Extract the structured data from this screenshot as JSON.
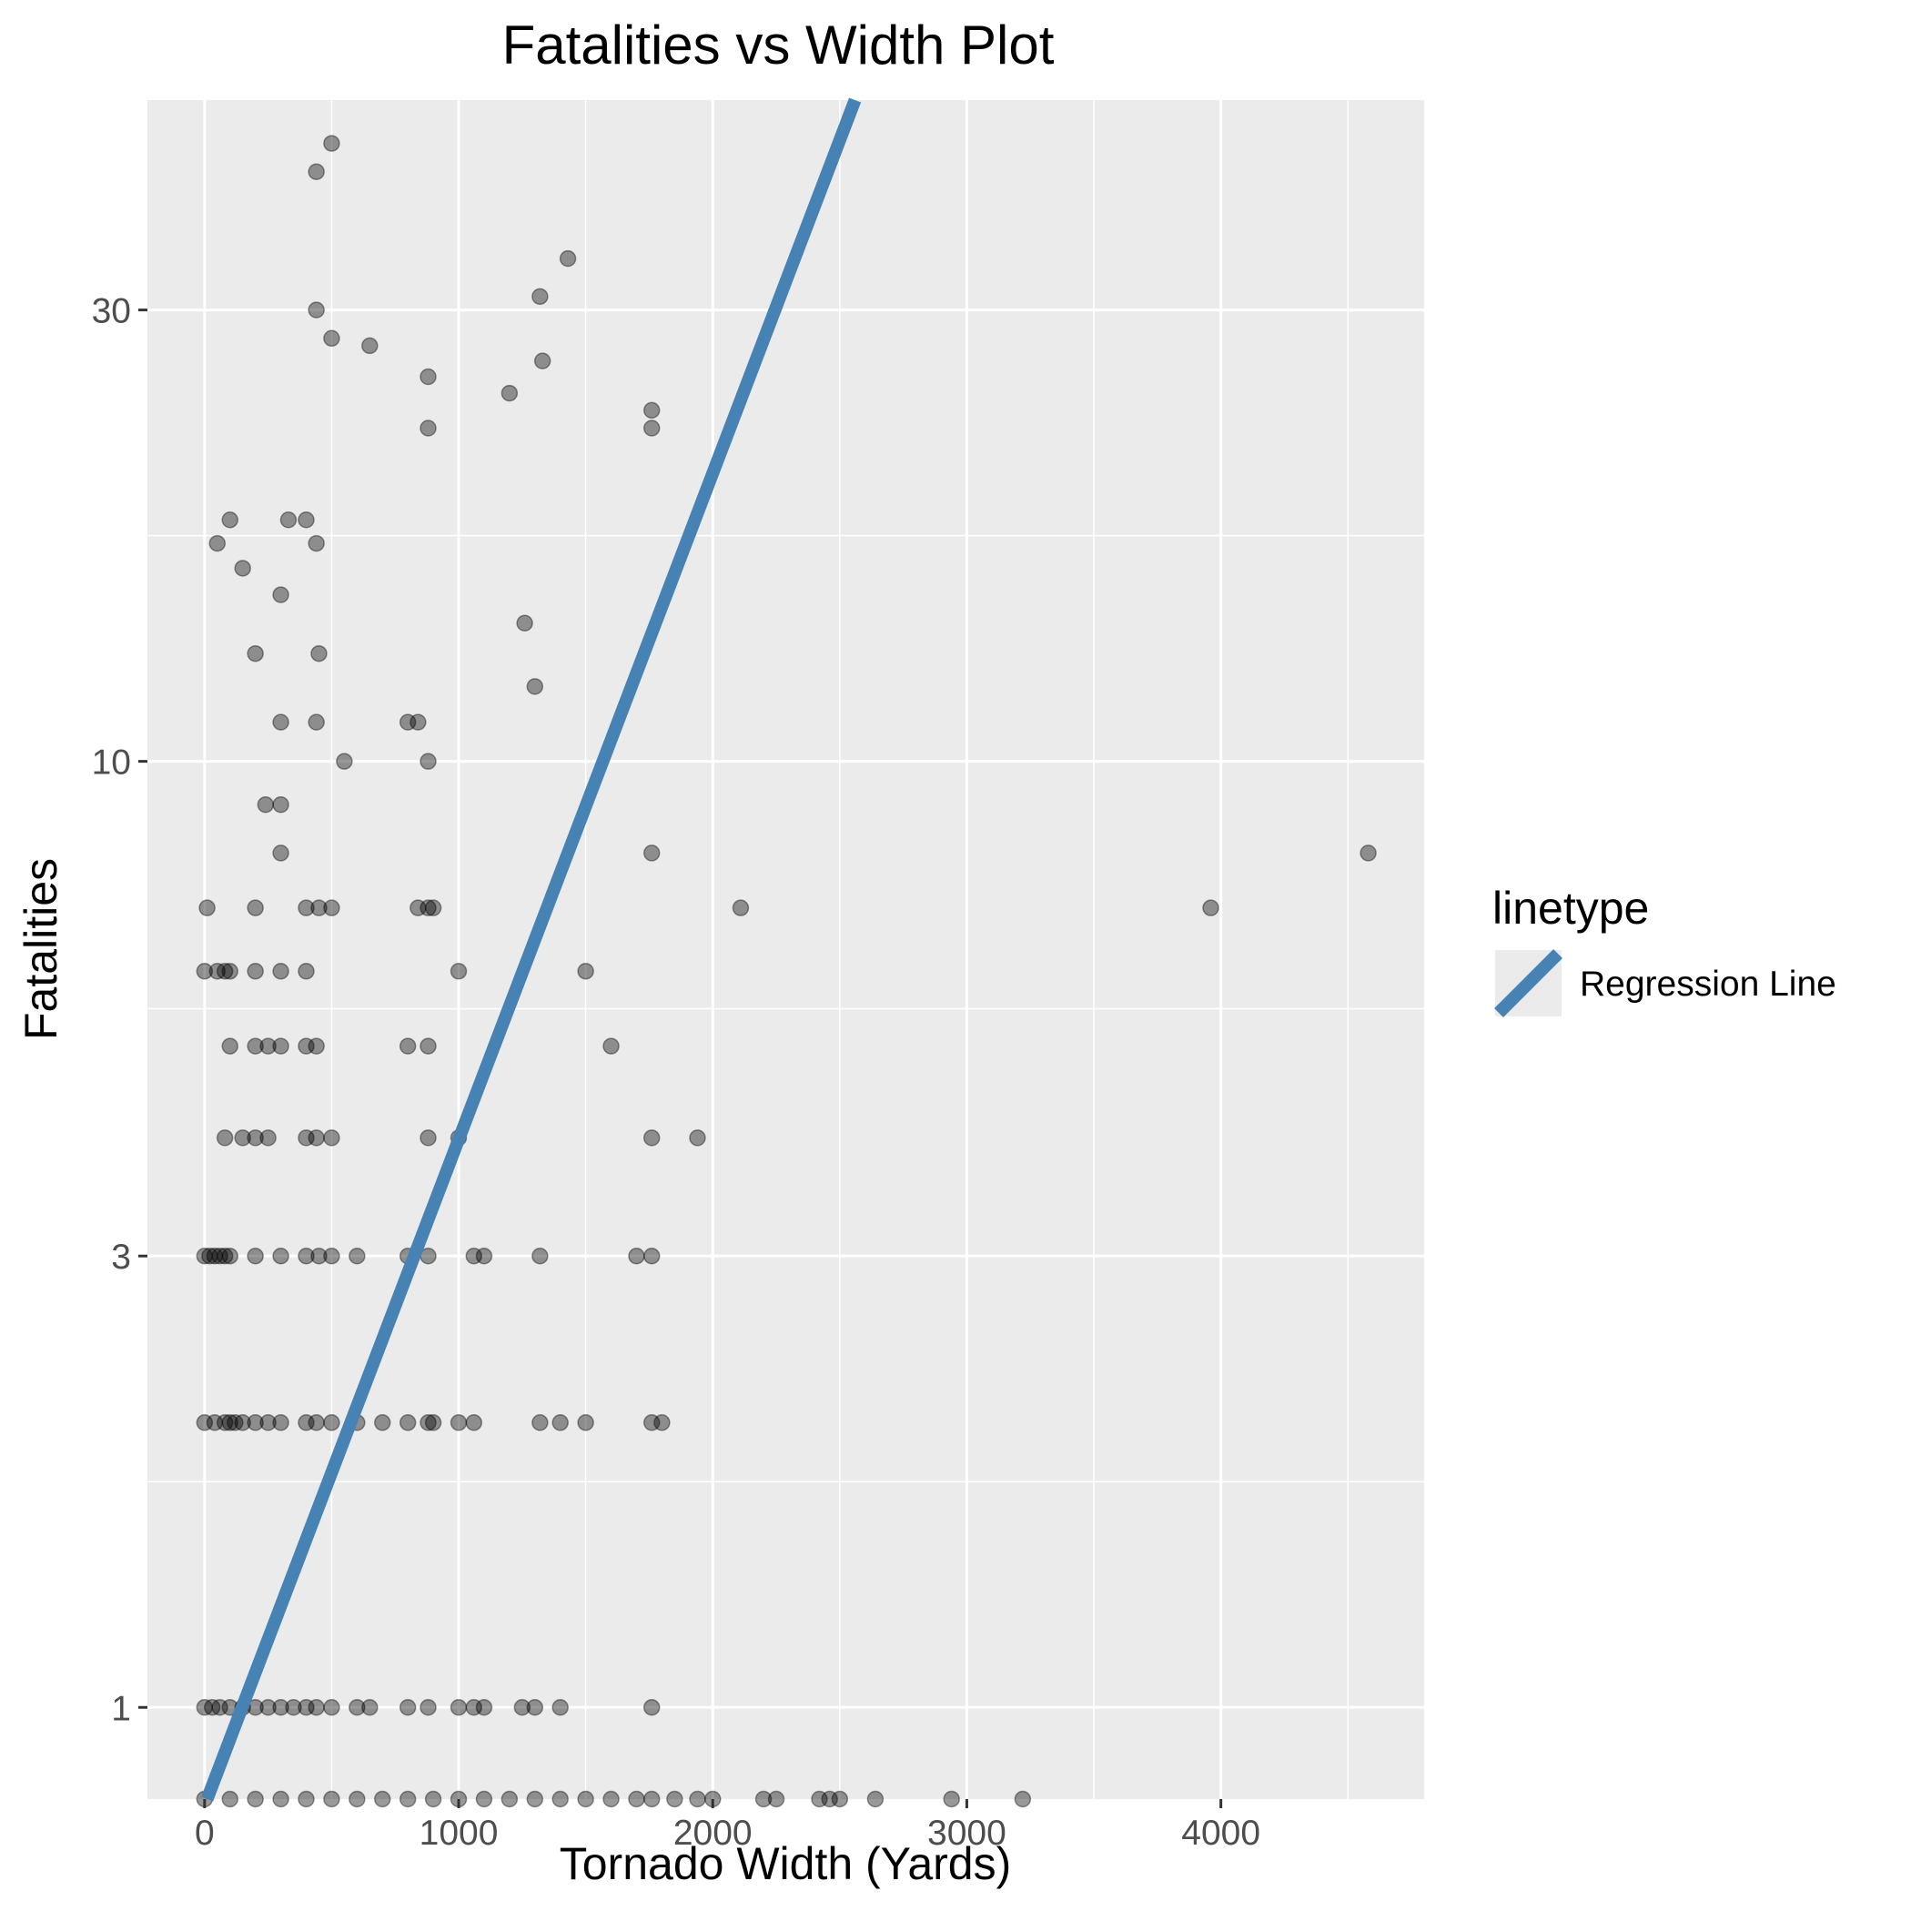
{
  "chart_data": {
    "type": "scatter",
    "title": "Fatalities vs Width Plot",
    "xlabel": "Tornado Width (Yards)",
    "ylabel": "Fatalities",
    "x_scale": "linear",
    "y_scale": "log",
    "xlim": [
      -225,
      4800
    ],
    "ylim": [
      0.8,
      50
    ],
    "x_ticks": [
      0,
      1000,
      2000,
      3000,
      4000
    ],
    "x_tick_labels": [
      "0",
      "1000",
      "2000",
      "3000",
      "4000"
    ],
    "y_ticks": [
      1,
      3,
      10,
      30
    ],
    "y_tick_labels": [
      "1",
      "3",
      "10",
      "30"
    ],
    "grid": true,
    "legend": {
      "title": "linetype",
      "position": "right",
      "entries": [
        {
          "label": "Regression Line",
          "color": "#4682b4"
        }
      ]
    },
    "colors": {
      "panel": "#ebebeb",
      "grid": "#ffffff",
      "point": "#000000",
      "line": "#4682b4"
    },
    "point_alpha": 0.4,
    "regression_line": {
      "x": [
        10,
        2560
      ],
      "y": [
        0.8,
        50
      ]
    },
    "points": [
      [
        500,
        45
      ],
      [
        440,
        42
      ],
      [
        1430,
        34
      ],
      [
        1320,
        31
      ],
      [
        440,
        30
      ],
      [
        500,
        28
      ],
      [
        650,
        27.5
      ],
      [
        1330,
        26.5
      ],
      [
        880,
        25.5
      ],
      [
        1200,
        24.5
      ],
      [
        1760,
        23.5
      ],
      [
        880,
        22.5
      ],
      [
        1760,
        22.5
      ],
      [
        100,
        18
      ],
      [
        330,
        18
      ],
      [
        400,
        18
      ],
      [
        50,
        17
      ],
      [
        440,
        17
      ],
      [
        150,
        16
      ],
      [
        300,
        15
      ],
      [
        1260,
        14
      ],
      [
        200,
        13
      ],
      [
        450,
        13
      ],
      [
        1300,
        12
      ],
      [
        300,
        11
      ],
      [
        440,
        11
      ],
      [
        800,
        11
      ],
      [
        840,
        11
      ],
      [
        550,
        10
      ],
      [
        880,
        10
      ],
      [
        240,
        9
      ],
      [
        300,
        9
      ],
      [
        300,
        8
      ],
      [
        1760,
        8
      ],
      [
        4580,
        8
      ],
      [
        10,
        7
      ],
      [
        200,
        7
      ],
      [
        400,
        7
      ],
      [
        450,
        7
      ],
      [
        500,
        7
      ],
      [
        840,
        7
      ],
      [
        880,
        7
      ],
      [
        900,
        7
      ],
      [
        2110,
        7
      ],
      [
        3960,
        7
      ],
      [
        0,
        6
      ],
      [
        50,
        6
      ],
      [
        80,
        6
      ],
      [
        100,
        6
      ],
      [
        200,
        6
      ],
      [
        300,
        6
      ],
      [
        400,
        6
      ],
      [
        1000,
        6
      ],
      [
        1500,
        6
      ],
      [
        100,
        5
      ],
      [
        200,
        5
      ],
      [
        250,
        5
      ],
      [
        300,
        5
      ],
      [
        400,
        5
      ],
      [
        440,
        5
      ],
      [
        800,
        5
      ],
      [
        880,
        5
      ],
      [
        1600,
        5
      ],
      [
        80,
        4
      ],
      [
        150,
        4
      ],
      [
        200,
        4
      ],
      [
        250,
        4
      ],
      [
        400,
        4
      ],
      [
        440,
        4
      ],
      [
        500,
        4
      ],
      [
        880,
        4
      ],
      [
        1000,
        4
      ],
      [
        1760,
        4
      ],
      [
        1940,
        4
      ],
      [
        0,
        3
      ],
      [
        20,
        3
      ],
      [
        40,
        3
      ],
      [
        60,
        3
      ],
      [
        80,
        3
      ],
      [
        100,
        3
      ],
      [
        200,
        3
      ],
      [
        300,
        3
      ],
      [
        400,
        3
      ],
      [
        450,
        3
      ],
      [
        500,
        3
      ],
      [
        600,
        3
      ],
      [
        800,
        3
      ],
      [
        880,
        3
      ],
      [
        1060,
        3
      ],
      [
        1100,
        3
      ],
      [
        1320,
        3
      ],
      [
        1700,
        3
      ],
      [
        1760,
        3
      ],
      [
        0,
        2
      ],
      [
        40,
        2
      ],
      [
        80,
        2
      ],
      [
        100,
        2
      ],
      [
        120,
        2
      ],
      [
        150,
        2
      ],
      [
        200,
        2
      ],
      [
        250,
        2
      ],
      [
        300,
        2
      ],
      [
        400,
        2
      ],
      [
        440,
        2
      ],
      [
        500,
        2
      ],
      [
        600,
        2
      ],
      [
        700,
        2
      ],
      [
        800,
        2
      ],
      [
        880,
        2
      ],
      [
        900,
        2
      ],
      [
        1000,
        2
      ],
      [
        1060,
        2
      ],
      [
        1320,
        2
      ],
      [
        1400,
        2
      ],
      [
        1500,
        2
      ],
      [
        1760,
        2
      ],
      [
        1800,
        2
      ],
      [
        0,
        1
      ],
      [
        30,
        1
      ],
      [
        60,
        1
      ],
      [
        100,
        1
      ],
      [
        150,
        1
      ],
      [
        200,
        1
      ],
      [
        250,
        1
      ],
      [
        300,
        1
      ],
      [
        350,
        1
      ],
      [
        400,
        1
      ],
      [
        440,
        1
      ],
      [
        500,
        1
      ],
      [
        600,
        1
      ],
      [
        650,
        1
      ],
      [
        800,
        1
      ],
      [
        880,
        1
      ],
      [
        1000,
        1
      ],
      [
        1060,
        1
      ],
      [
        1100,
        1
      ],
      [
        1250,
        1
      ],
      [
        1300,
        1
      ],
      [
        1400,
        1
      ],
      [
        1760,
        1
      ],
      [
        0,
        0.8
      ],
      [
        100,
        0.8
      ],
      [
        200,
        0.8
      ],
      [
        300,
        0.8
      ],
      [
        400,
        0.8
      ],
      [
        500,
        0.8
      ],
      [
        600,
        0.8
      ],
      [
        700,
        0.8
      ],
      [
        800,
        0.8
      ],
      [
        900,
        0.8
      ],
      [
        1000,
        0.8
      ],
      [
        1100,
        0.8
      ],
      [
        1200,
        0.8
      ],
      [
        1300,
        0.8
      ],
      [
        1400,
        0.8
      ],
      [
        1500,
        0.8
      ],
      [
        1600,
        0.8
      ],
      [
        1700,
        0.8
      ],
      [
        1760,
        0.8
      ],
      [
        1850,
        0.8
      ],
      [
        1940,
        0.8
      ],
      [
        2000,
        0.8
      ],
      [
        2200,
        0.8
      ],
      [
        2250,
        0.8
      ],
      [
        2420,
        0.8
      ],
      [
        2460,
        0.8
      ],
      [
        2500,
        0.8
      ],
      [
        2640,
        0.8
      ],
      [
        2940,
        0.8
      ],
      [
        3220,
        0.8
      ]
    ]
  }
}
